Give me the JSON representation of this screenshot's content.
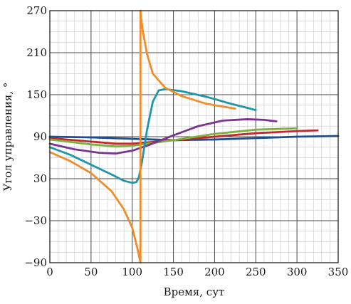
{
  "chart_data": {
    "type": "line",
    "title": "",
    "xlabel": "Время, сут",
    "ylabel": "Угол управления, °",
    "xlim": [
      0,
      350
    ],
    "ylim": [
      -90,
      270
    ],
    "xticks": [
      0,
      50,
      100,
      150,
      200,
      250,
      300,
      350
    ],
    "yticks": [
      -90,
      -30,
      30,
      90,
      150,
      210,
      270
    ],
    "xtick_labels": [
      "0",
      "50",
      "100",
      "150",
      "200",
      "250",
      "300",
      "350"
    ],
    "ytick_labels": [
      "−90",
      "−30",
      "30",
      "90",
      "150",
      "210",
      "270"
    ],
    "grid": true,
    "minor_grid": true,
    "legend": "none",
    "series": [
      {
        "color": "#1f4e8c",
        "x": [
          0,
          50,
          100,
          150,
          200,
          250,
          300,
          350
        ],
        "y": [
          90,
          89,
          87,
          85,
          86,
          88,
          90,
          91
        ]
      },
      {
        "color": "#c0282d",
        "x": [
          0,
          50,
          80,
          100,
          150,
          200,
          250,
          300,
          325
        ],
        "y": [
          88,
          83,
          80,
          80,
          85,
          90,
          95,
          98,
          99
        ]
      },
      {
        "color": "#7fb040",
        "x": [
          0,
          50,
          80,
          100,
          150,
          200,
          250,
          300
        ],
        "y": [
          86,
          79,
          76,
          77,
          85,
          94,
          100,
          102
        ]
      },
      {
        "color": "#7a3590",
        "x": [
          0,
          30,
          60,
          80,
          100,
          120,
          150,
          180,
          210,
          240,
          260,
          275
        ],
        "y": [
          80,
          72,
          67,
          66,
          70,
          78,
          92,
          105,
          113,
          115,
          114,
          112
        ]
      },
      {
        "color": "#1f96aa",
        "x": [
          0,
          25,
          50,
          75,
          90,
          100,
          105,
          108,
          112,
          118,
          125,
          132,
          140,
          160,
          190,
          220,
          250
        ],
        "y": [
          75,
          64,
          50,
          36,
          27,
          24,
          25,
          32,
          55,
          100,
          140,
          156,
          158,
          155,
          147,
          137,
          128
        ]
      },
      {
        "color": "#f08c2a",
        "x": [
          0,
          25,
          50,
          75,
          90,
          100,
          106,
          110,
          110,
          111,
          113,
          118,
          125,
          140,
          160,
          190,
          225
        ],
        "y": [
          68,
          55,
          38,
          12,
          -14,
          -40,
          -68,
          -90,
          270,
          258,
          240,
          208,
          180,
          160,
          148,
          137,
          130
        ]
      }
    ]
  }
}
